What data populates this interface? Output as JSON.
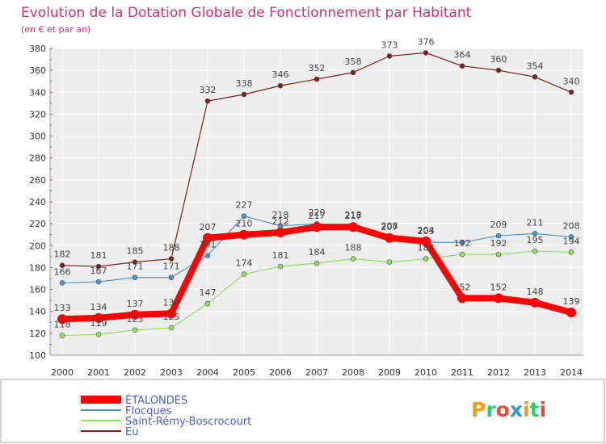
{
  "chart_data": {
    "type": "line",
    "title": "Evolution de la Dotation Globale de Fonctionnement par Habitant",
    "subtitle": "(en € et par an)",
    "xlabel": "",
    "ylabel": "",
    "ylim": [
      100,
      380
    ],
    "yticks": [
      100,
      120,
      140,
      160,
      180,
      200,
      220,
      240,
      260,
      280,
      300,
      320,
      340,
      360,
      380
    ],
    "grid": true,
    "legend_position": "bottom-left",
    "categories": [
      "2000",
      "2001",
      "2002",
      "2003",
      "2004",
      "2005",
      "2006",
      "2007",
      "2008",
      "2009",
      "2010",
      "2011",
      "2012",
      "2013",
      "2014"
    ],
    "series": [
      {
        "name": "ÉTALONDES",
        "color": "#ff0000",
        "values": [
          133,
          134,
          137,
          138,
          207,
          210,
          212,
          217,
          217,
          207,
          204,
          152,
          152,
          148,
          139
        ],
        "labels": [
          "133",
          "134",
          "137",
          "138",
          "207",
          "210",
          "212",
          "217",
          "217",
          "207",
          "204",
          "152",
          "152",
          "148",
          "139"
        ]
      },
      {
        "name": "Flocques",
        "color": "#4f94cd",
        "values": [
          166,
          167,
          171,
          171,
          191,
          227,
          218,
          220,
          218,
          208,
          203,
          203,
          209,
          211,
          208
        ],
        "labels": [
          "166",
          "167",
          "171",
          "171",
          "191",
          "227",
          "218",
          "220",
          "218",
          "208",
          "203",
          "",
          "209",
          "211",
          "208"
        ]
      },
      {
        "name": "Saint-Rémy-Boscrocourt",
        "color": "#90e060",
        "values": [
          118,
          119,
          123,
          125,
          147,
          174,
          181,
          184,
          188,
          185,
          188,
          192,
          192,
          195,
          194
        ],
        "labels": [
          "118",
          "119",
          "123",
          "125",
          "147",
          "174",
          "181",
          "184",
          "188",
          "",
          "188",
          "192",
          "192",
          "195",
          "194"
        ]
      },
      {
        "name": "Eu",
        "color": "#7b2020",
        "values": [
          182,
          181,
          185,
          188,
          332,
          338,
          346,
          352,
          358,
          373,
          376,
          364,
          360,
          354,
          340
        ],
        "labels": [
          "182",
          "181",
          "185",
          "188",
          "332",
          "338",
          "346",
          "352",
          "358",
          "373",
          "376",
          "364",
          "360",
          "354",
          "340"
        ]
      }
    ]
  },
  "logo": {
    "text": "Proxiti",
    "colors": [
      "#f39c12",
      "#2ecc71",
      "#e74c3c",
      "#3498db"
    ]
  }
}
